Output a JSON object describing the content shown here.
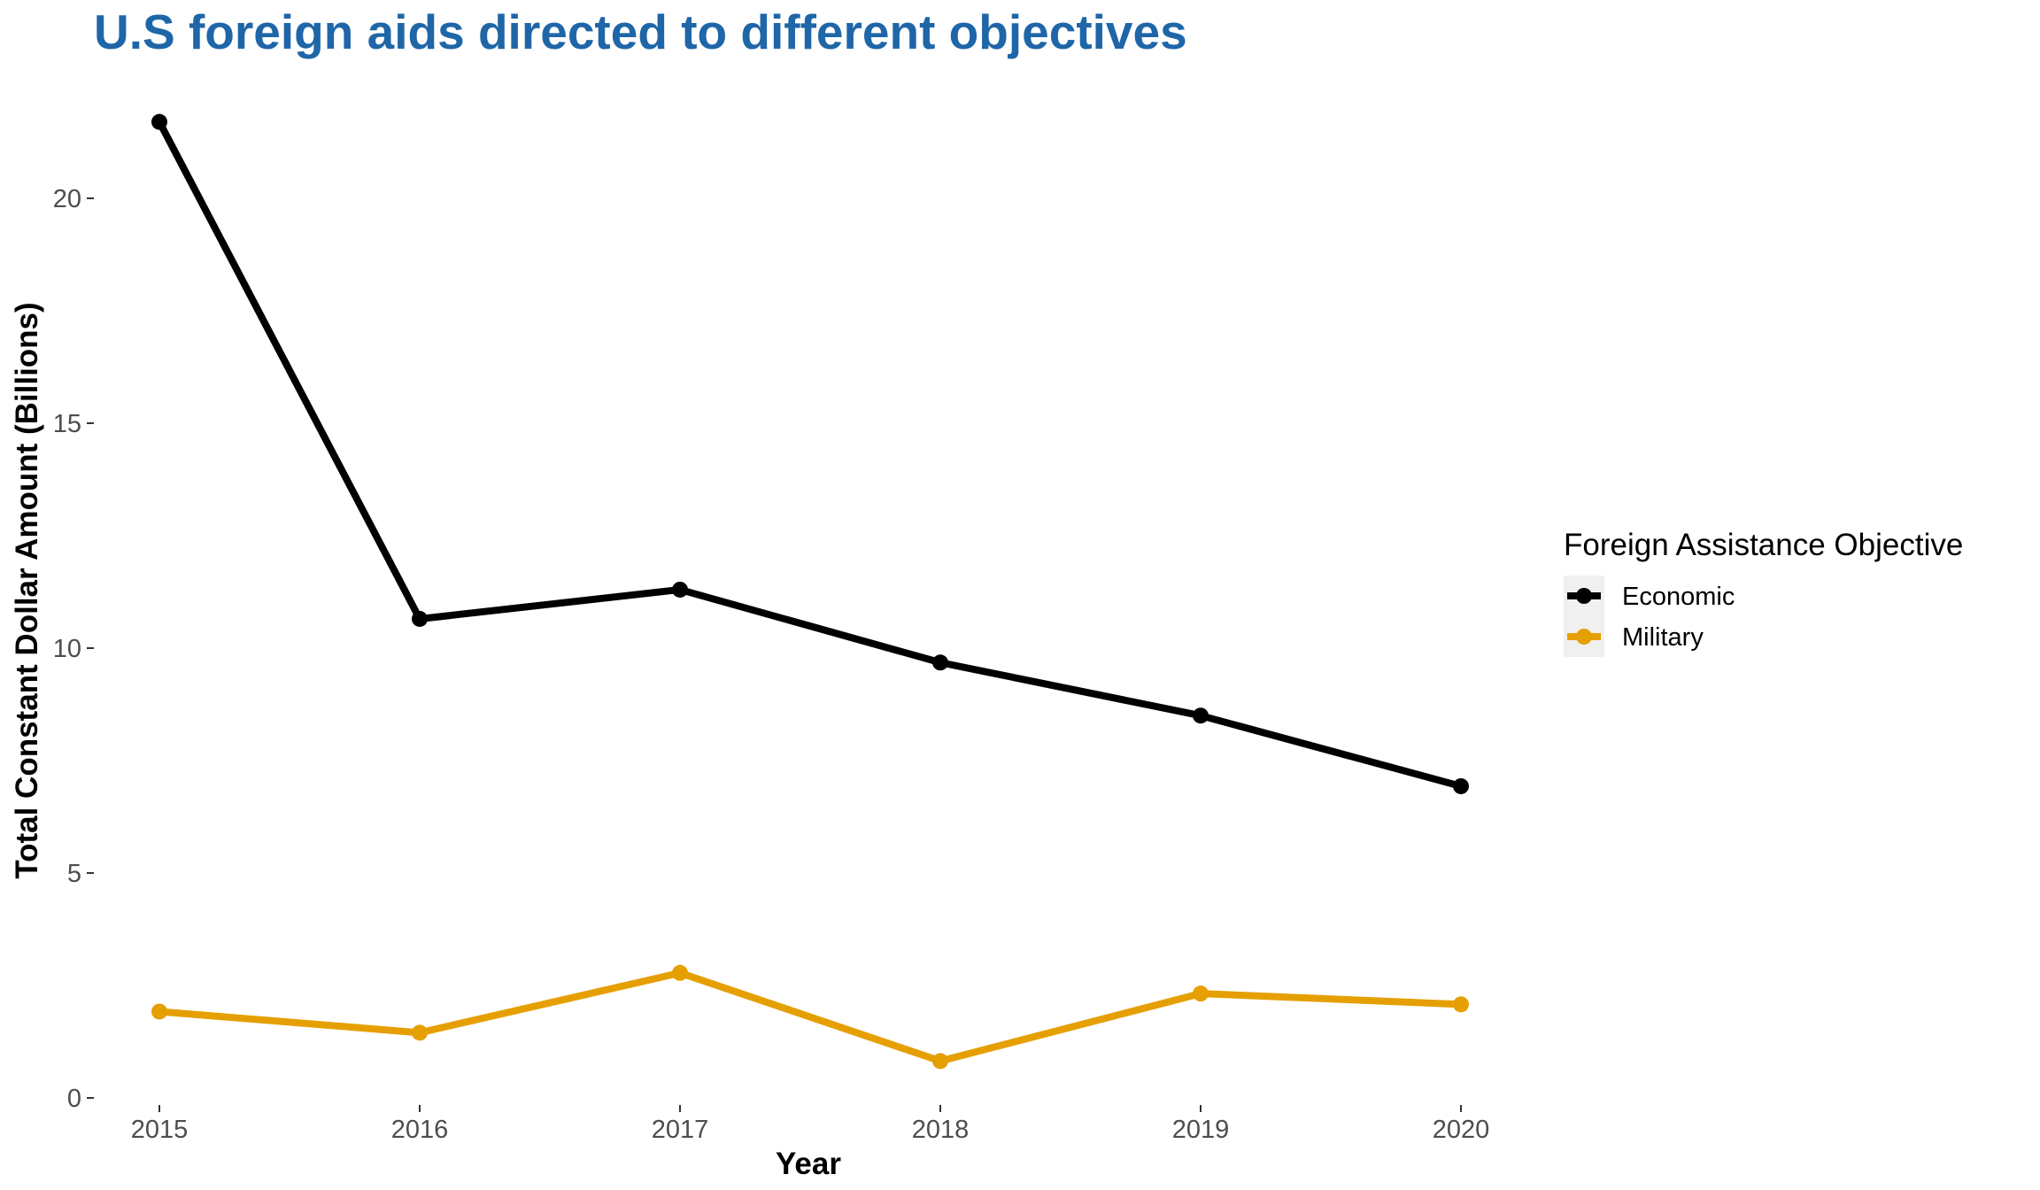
{
  "chart_data": {
    "type": "line",
    "title": "U.S foreign aids directed to different objectives",
    "xlabel": "Year",
    "ylabel": "Total Constant Dollar Amount (Billions)",
    "x": [
      2015,
      2016,
      2017,
      2018,
      2019,
      2020
    ],
    "x_tick_labels": [
      "2015",
      "2016",
      "2017",
      "2018",
      "2019",
      "2020"
    ],
    "y_ticks": [
      0,
      5,
      10,
      15,
      20
    ],
    "y_tick_labels": [
      "0",
      "5",
      "10",
      "15",
      "20"
    ],
    "ylim": [
      0,
      22
    ],
    "grid": false,
    "legend": {
      "title": "Foreign Assistance Objective",
      "position": "right"
    },
    "series": [
      {
        "name": "Economic",
        "color": "#000000",
        "values": [
          21.7,
          10.65,
          11.3,
          9.68,
          8.5,
          6.93
        ]
      },
      {
        "name": "Military",
        "color": "#E69F00",
        "values": [
          1.92,
          1.45,
          2.78,
          0.82,
          2.32,
          2.08
        ]
      }
    ],
    "title_color": "#1F66A8"
  }
}
